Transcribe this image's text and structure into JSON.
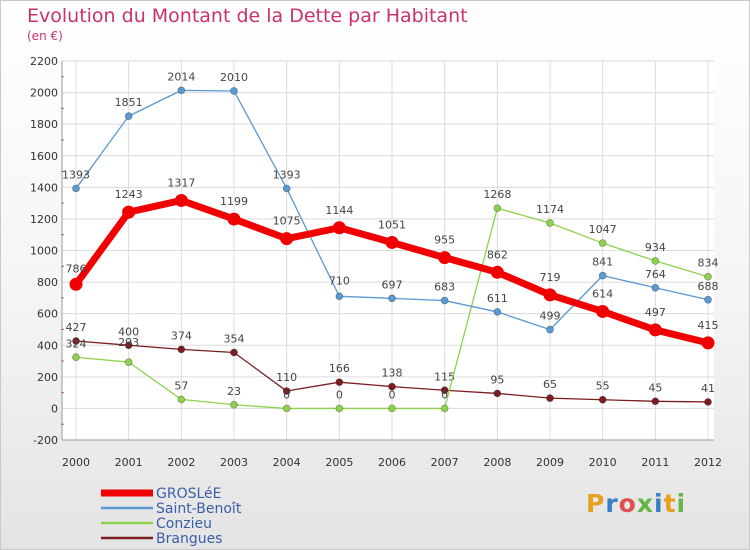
{
  "title": "Evolution du Montant de la Dette par Habitant",
  "subtitle": "(en €)",
  "logo": {
    "text": "Proxiti",
    "letter_colors": [
      "#e8a020",
      "#3a7ec4",
      "#e05050",
      "#63b843",
      "#3a7ec4",
      "#e8a020",
      "#63b843"
    ]
  },
  "chart_data": {
    "type": "line",
    "title": "Evolution du Montant de la Dette par Habitant",
    "subtitle": "(en €)",
    "x": [
      "2000",
      "2001",
      "2002",
      "2003",
      "2004",
      "2005",
      "2006",
      "2007",
      "2008",
      "2009",
      "2010",
      "2011",
      "2012"
    ],
    "ylim": [
      -200,
      2200
    ],
    "yticks": [
      -200,
      0,
      200,
      400,
      600,
      800,
      1000,
      1200,
      1400,
      1600,
      1800,
      2000,
      2200
    ],
    "grid": true,
    "legend_position": "bottom-left",
    "series": [
      {
        "name": "Brangues",
        "color": "#7b1e22",
        "values": [
          427,
          400,
          374,
          354,
          110,
          166,
          138,
          115,
          95,
          65,
          55,
          45,
          41
        ],
        "labels": [
          "427",
          "400",
          "374",
          "354",
          "110",
          "166",
          "138",
          "115",
          "95",
          "65",
          "55",
          "45",
          "41"
        ]
      },
      {
        "name": "Conzieu",
        "color": "#8ed14f",
        "values": [
          324,
          293,
          57,
          23,
          0,
          0,
          0,
          0,
          1268,
          1174,
          1047,
          934,
          834
        ],
        "labels": [
          "324",
          "293",
          "57",
          "23",
          "0",
          "0",
          "0",
          "0",
          "1268",
          "1174",
          "1047",
          "934",
          "834"
        ]
      },
      {
        "name": "Saint-Benoît",
        "color": "#5a99d1",
        "values": [
          1393,
          1851,
          2014,
          2010,
          1393,
          710,
          697,
          683,
          611,
          499,
          841,
          764,
          688
        ],
        "labels": [
          "1393",
          "1851",
          "2014",
          "2010",
          "1393",
          "710",
          "697",
          "683",
          "611",
          "499",
          "841",
          "764",
          "688"
        ]
      },
      {
        "name": "GROSLéE",
        "color": "#f00000",
        "values": [
          786,
          1243,
          1317,
          1199,
          1075,
          1144,
          1051,
          955,
          862,
          719,
          614,
          497,
          415
        ],
        "labels": [
          "786",
          "1243",
          "1317",
          "1199",
          "1075",
          "1144",
          "1051",
          "955",
          "862",
          "719",
          "614",
          "497",
          "415"
        ]
      }
    ],
    "legend": [
      "GROSLéE",
      "Saint-Benoît",
      "Conzieu",
      "Brangues"
    ]
  }
}
